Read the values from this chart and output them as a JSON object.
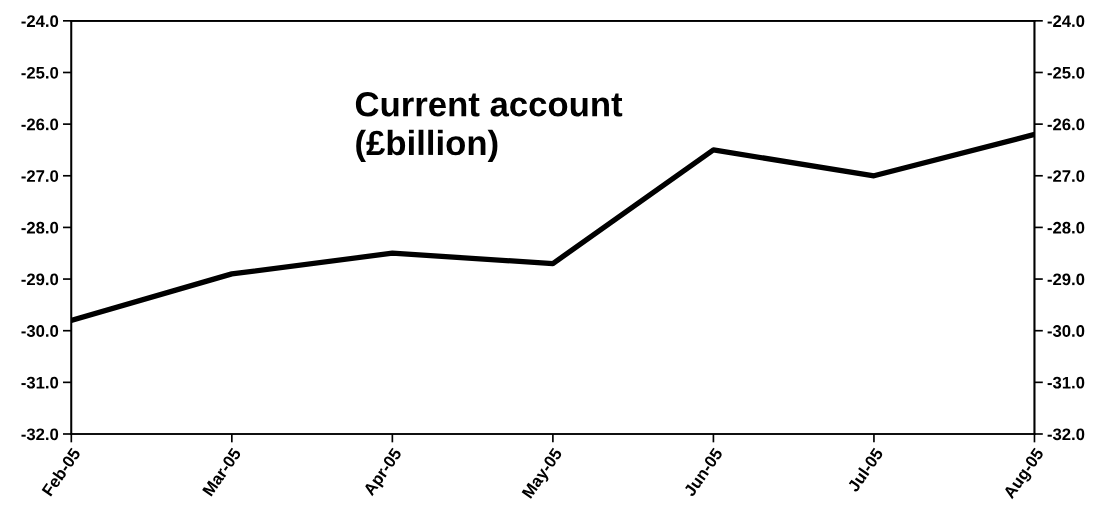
{
  "chart_data": {
    "type": "line",
    "title": "Current account\n(£billion)",
    "categories": [
      "Feb-05",
      "Mar-05",
      "Apr-05",
      "May-05",
      "Jun-05",
      "Jul-05",
      "Aug-05"
    ],
    "series": [
      {
        "color": "#000000",
        "values": [
          -29.8,
          -28.9,
          -28.5,
          -28.7,
          -26.5,
          -27.0,
          -26.2
        ]
      }
    ],
    "ylim": [
      -32,
      -24
    ],
    "yticks": [
      {
        "value": -32,
        "label": "-32.0"
      },
      {
        "value": -31,
        "label": "-31.0"
      },
      {
        "value": -30,
        "label": "-30.0"
      },
      {
        "value": -29,
        "label": "-29.0"
      },
      {
        "value": -28,
        "label": "-28.0"
      },
      {
        "value": -27,
        "label": "-27.0"
      },
      {
        "value": -26,
        "label": "-26.0"
      },
      {
        "value": -25,
        "label": "-25.0"
      },
      {
        "value": -24,
        "label": "-24.0"
      }
    ],
    "y2lim": [
      -32,
      -24
    ],
    "y2ticks": [
      {
        "value": -32,
        "label": "-32.0"
      },
      {
        "value": -31,
        "label": "-31.0"
      },
      {
        "value": -30,
        "label": "-30.0"
      },
      {
        "value": -29,
        "label": "-29.0"
      },
      {
        "value": -28,
        "label": "-28.0"
      },
      {
        "value": -27,
        "label": "-27.0"
      },
      {
        "value": -26,
        "label": "-26.0"
      },
      {
        "value": -25,
        "label": "-25.0"
      },
      {
        "value": -24,
        "label": "-24.0"
      }
    ],
    "grid": false,
    "line_style": "solid"
  }
}
